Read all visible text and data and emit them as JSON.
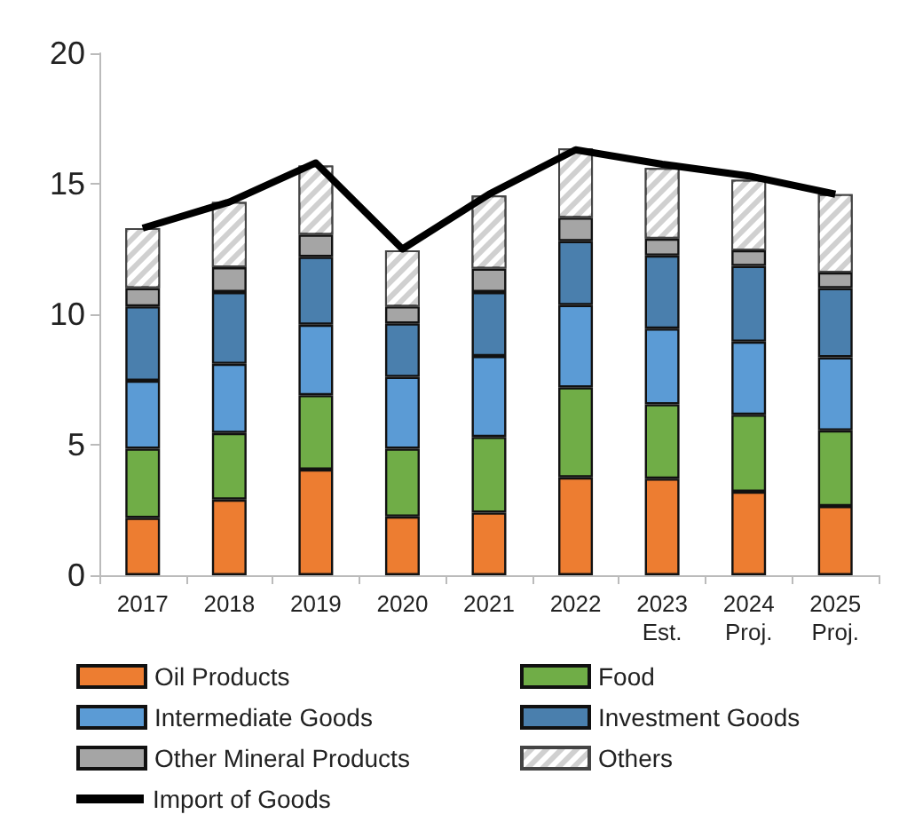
{
  "chart_data": {
    "type": "bar",
    "stacked": true,
    "categories": [
      "2017",
      "2018",
      "2019",
      "2020",
      "2021",
      "2022",
      "2023\nEst.",
      "2024\nProj.",
      "2025\nProj."
    ],
    "series": [
      {
        "name": "Oil Products",
        "color": "#ed7d31",
        "values": [
          2.2,
          2.9,
          4.05,
          2.25,
          2.4,
          3.75,
          3.7,
          3.2,
          2.65
        ]
      },
      {
        "name": "Food",
        "color": "#70ad47",
        "values": [
          2.65,
          2.55,
          2.85,
          2.6,
          2.9,
          3.45,
          2.85,
          2.95,
          2.9
        ]
      },
      {
        "name": "Intermediate Goods",
        "color": "#5b9bd5",
        "values": [
          2.6,
          2.65,
          2.7,
          2.75,
          3.1,
          3.15,
          2.9,
          2.8,
          2.8
        ]
      },
      {
        "name": "Investment Goods",
        "color": "#4a7fad",
        "values": [
          2.85,
          2.75,
          2.6,
          2.05,
          2.45,
          2.45,
          2.8,
          2.9,
          2.65
        ]
      },
      {
        "name": "Other Mineral Products",
        "color": "#a5a5a5",
        "values": [
          0.7,
          0.95,
          0.85,
          0.65,
          0.9,
          0.9,
          0.65,
          0.6,
          0.6
        ]
      },
      {
        "name": "Others",
        "color": "#d0d0d0",
        "values": [
          2.3,
          2.5,
          2.65,
          2.15,
          2.8,
          2.65,
          2.7,
          2.7,
          3.0
        ]
      },
      {
        "name": "Import of Goods",
        "type": "line",
        "color": "#000000",
        "values": [
          13.3,
          14.3,
          15.8,
          12.5,
          14.6,
          16.3,
          15.75,
          15.3,
          14.6
        ]
      }
    ],
    "ylim": [
      0,
      20
    ],
    "yticks": [
      0,
      5,
      10,
      15,
      20
    ],
    "grid": false,
    "legend": "bottom",
    "marker": "none"
  }
}
